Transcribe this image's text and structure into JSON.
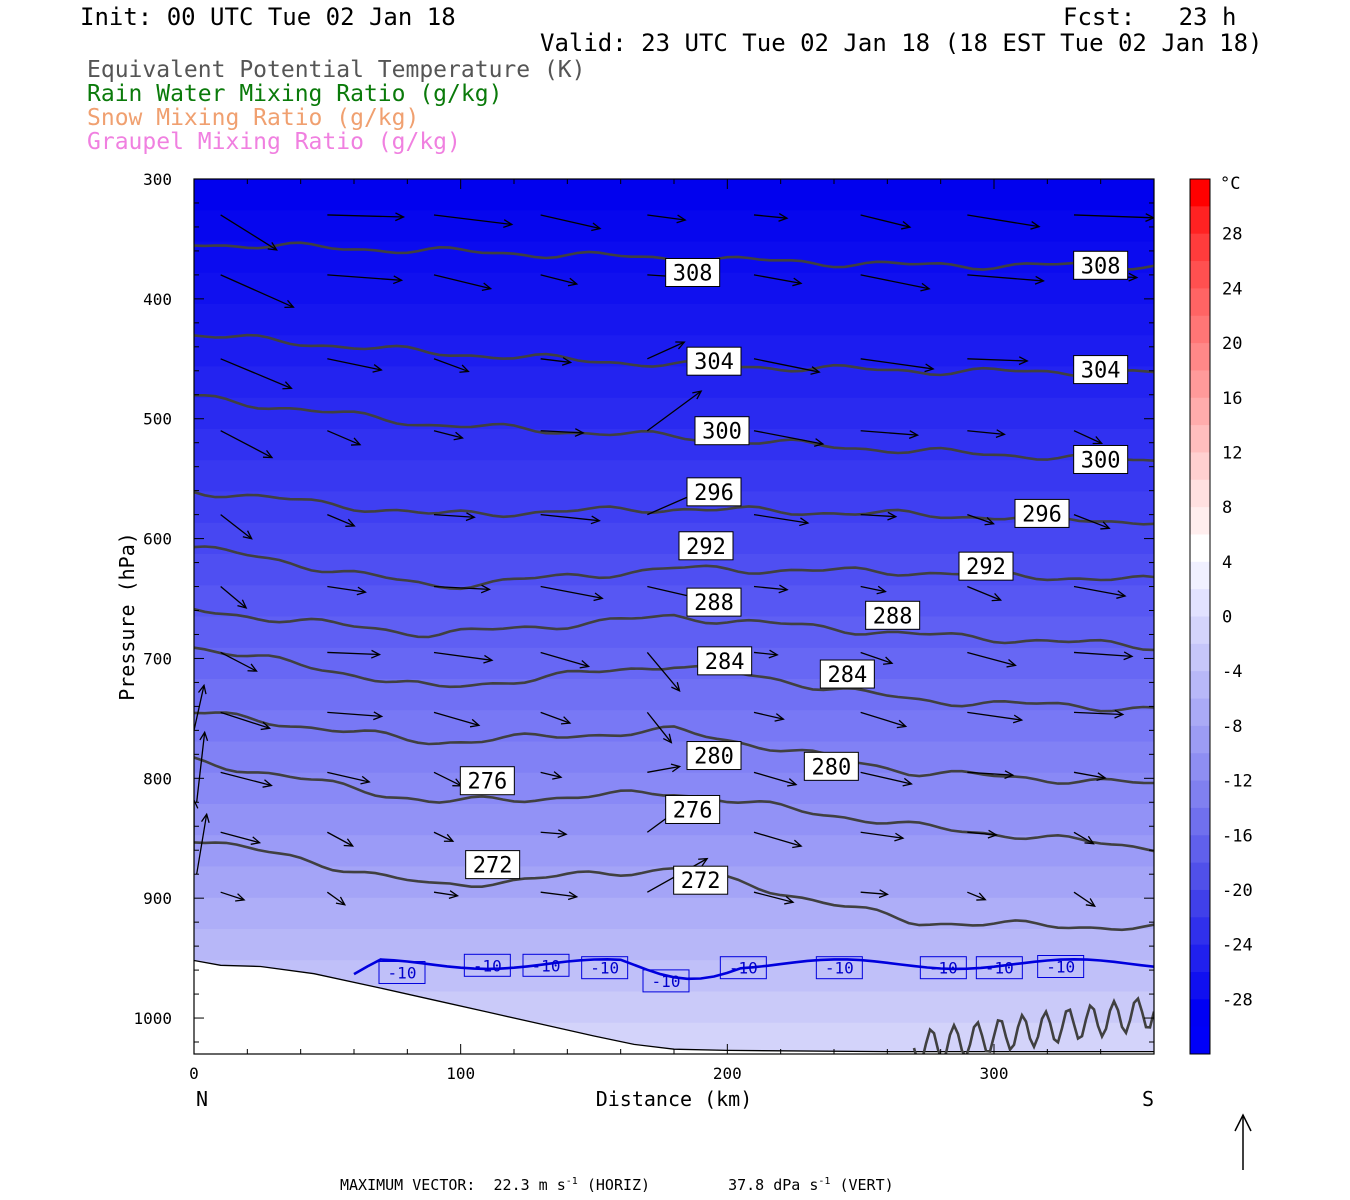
{
  "header": {
    "init": "Init: 00 UTC Tue 02 Jan 18",
    "fcst": "Fcst:   23 h",
    "valid": "Valid: 23 UTC Tue 02 Jan 18 (18 EST Tue 02 Jan 18)"
  },
  "legend": [
    {
      "label": "Equivalent Potential Temperature (K)",
      "color": "#555555"
    },
    {
      "label": "Rain Water Mixing Ratio (g/kg)",
      "color": "#0a7a0a"
    },
    {
      "label": "Snow Mixing Ratio (g/kg)",
      "color": "#f0a070"
    },
    {
      "label": "Graupel Mixing Ratio (g/kg)",
      "color": "#f080e0"
    }
  ],
  "chart_data": {
    "type": "cross-section",
    "xlabel": "Distance (km)",
    "ylabel": "Pressure (hPa)",
    "xlim": [
      0,
      360
    ],
    "ylim": [
      1030,
      300
    ],
    "x_ticks": [
      0,
      100,
      200,
      300
    ],
    "y_ticks": [
      300,
      400,
      500,
      600,
      700,
      800,
      900,
      1000
    ],
    "x_end_labels": {
      "left": "N",
      "right": "S"
    },
    "colorbar": {
      "unit": "°C",
      "ticks": [
        28,
        24,
        20,
        16,
        12,
        8,
        4,
        0,
        -4,
        -8,
        -12,
        -16,
        -20,
        -24,
        -28
      ],
      "levels": [
        32,
        30,
        28,
        26,
        24,
        22,
        20,
        18,
        16,
        14,
        12,
        10,
        8,
        6,
        4,
        2,
        0,
        -2,
        -4,
        -6,
        -8,
        -10,
        -12,
        -14,
        -16,
        -18,
        -20,
        -22,
        -24,
        -26,
        -28,
        -30,
        -32
      ],
      "colors": [
        "#ff0000",
        "#ff2222",
        "#ff3c3c",
        "#ff5050",
        "#ff6464",
        "#ff7676",
        "#ff8888",
        "#ff9a9a",
        "#ffacac",
        "#ffbebe",
        "#ffd0d0",
        "#ffe0e0",
        "#ffeeee",
        "#ffffff",
        "#f0f0ff",
        "#e2e2ff",
        "#d4d4fc",
        "#c6c6fa",
        "#b8b8f8",
        "#aaaaf6",
        "#9c9cf4",
        "#8e8ef2",
        "#8080f0",
        "#7070ee",
        "#6060ec",
        "#5050ea",
        "#4040ea",
        "#3030ec",
        "#2020ee",
        "#1010f0",
        "#0000f4",
        "#0000f8"
      ]
    },
    "theta_e_contours": [
      {
        "value": 308,
        "y": [
          354,
          360,
          366,
          372,
          372
        ]
      },
      {
        "value": 304,
        "y": [
          430,
          445,
          455,
          460,
          462
        ]
      },
      {
        "value": 300,
        "y": [
          482,
          505,
          515,
          527,
          535
        ]
      },
      {
        "value": 296,
        "y": [
          560,
          580,
          575,
          580,
          586
        ]
      },
      {
        "value": 292,
        "y": [
          607,
          640,
          625,
          628,
          635
        ]
      },
      {
        "value": 288,
        "y": [
          660,
          680,
          665,
          680,
          690
        ]
      },
      {
        "value": 284,
        "y": [
          690,
          725,
          705,
          735,
          742
        ]
      },
      {
        "value": 280,
        "y": [
          745,
          770,
          760,
          795,
          805
        ]
      },
      {
        "value": 276,
        "y": [
          785,
          820,
          812,
          840,
          858
        ]
      },
      {
        "value": 272,
        "y": [
          850,
          890,
          875,
          920,
          925
        ]
      }
    ],
    "temperature_line": {
      "value": -10,
      "color": "#0000dd",
      "x_start": 60,
      "x_end": 360,
      "pressure": 955
    },
    "contour_labels": [
      {
        "text": "308",
        "x": 187,
        "p": 378
      },
      {
        "text": "308",
        "x": 340,
        "p": 372
      },
      {
        "text": "304",
        "x": 195,
        "p": 452
      },
      {
        "text": "304",
        "x": 340,
        "p": 459
      },
      {
        "text": "300",
        "x": 198,
        "p": 510
      },
      {
        "text": "300",
        "x": 340,
        "p": 534
      },
      {
        "text": "296",
        "x": 195,
        "p": 561
      },
      {
        "text": "296",
        "x": 318,
        "p": 579
      },
      {
        "text": "292",
        "x": 192,
        "p": 606
      },
      {
        "text": "292",
        "x": 297,
        "p": 623
      },
      {
        "text": "288",
        "x": 195,
        "p": 653
      },
      {
        "text": "288",
        "x": 262,
        "p": 664
      },
      {
        "text": "284",
        "x": 199,
        "p": 702
      },
      {
        "text": "284",
        "x": 245,
        "p": 713
      },
      {
        "text": "280",
        "x": 195,
        "p": 781
      },
      {
        "text": "280",
        "x": 239,
        "p": 790
      },
      {
        "text": "276",
        "x": 110,
        "p": 802
      },
      {
        "text": "276",
        "x": 187,
        "p": 826
      },
      {
        "text": "272",
        "x": 112,
        "p": 872
      },
      {
        "text": "272",
        "x": 190,
        "p": 885
      },
      {
        "text": "-10",
        "x": 78,
        "p": 962
      },
      {
        "text": "-10",
        "x": 110,
        "p": 956
      },
      {
        "text": "-10",
        "x": 132,
        "p": 956
      },
      {
        "text": "-10",
        "x": 154,
        "p": 958
      },
      {
        "text": "-10",
        "x": 177,
        "p": 969
      },
      {
        "text": "-10",
        "x": 206,
        "p": 958
      },
      {
        "text": "-10",
        "x": 242,
        "p": 958
      },
      {
        "text": "-10",
        "x": 281,
        "p": 958
      },
      {
        "text": "-10",
        "x": 302,
        "p": 958
      },
      {
        "text": "-10",
        "x": 325,
        "p": 957
      }
    ],
    "max_vector": {
      "label": "MAXIMUM VECTOR:",
      "horiz": "22.3 m s",
      "horiz_exp": "-1",
      "horiz_tag": "(HORIZ)",
      "vert": "37.8 dPa s",
      "vert_exp": "-1",
      "vert_tag": "(VERT)"
    }
  }
}
